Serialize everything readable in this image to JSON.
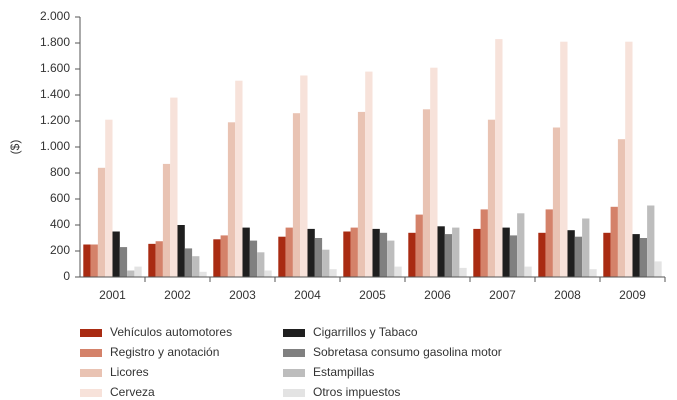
{
  "chart_data": {
    "type": "bar",
    "ylabel": "($)",
    "categories": [
      "2001",
      "2002",
      "2003",
      "2004",
      "2005",
      "2006",
      "2007",
      "2008",
      "2009"
    ],
    "series": [
      {
        "name": "Vehículos automotores",
        "color": "#a92b12",
        "values": [
          250,
          255,
          290,
          310,
          350,
          340,
          370,
          340,
          340
        ]
      },
      {
        "name": "Registro y anotación",
        "color": "#d4826a",
        "values": [
          250,
          275,
          320,
          380,
          380,
          480,
          520,
          520,
          540
        ]
      },
      {
        "name": "Licores",
        "color": "#e9c3b3",
        "values": [
          840,
          870,
          1190,
          1260,
          1270,
          1290,
          1210,
          1150,
          1060
        ]
      },
      {
        "name": "Cerveza",
        "color": "#f7e2da",
        "values": [
          1210,
          1380,
          1510,
          1550,
          1580,
          1610,
          1830,
          1810,
          1810
        ]
      },
      {
        "name": "Cigarrillos y Tabaco",
        "color": "#1f1f1f",
        "values": [
          350,
          400,
          380,
          370,
          370,
          390,
          380,
          360,
          330
        ]
      },
      {
        "name": "Sobretasa consumo gasolina motor",
        "color": "#808080",
        "values": [
          230,
          220,
          280,
          300,
          340,
          330,
          320,
          310,
          300
        ]
      },
      {
        "name": "Estampillas",
        "color": "#bdbdbd",
        "values": [
          50,
          160,
          190,
          210,
          280,
          380,
          490,
          450,
          550
        ]
      },
      {
        "name": "Otros impuestos",
        "color": "#e3e3e3",
        "values": [
          80,
          40,
          50,
          60,
          80,
          70,
          80,
          60,
          120
        ]
      }
    ],
    "ylim": [
      0,
      2000
    ],
    "yticks": [
      0,
      200,
      400,
      600,
      800,
      {
        "value": 1000,
        "label": "1.000"
      },
      {
        "value": 1200,
        "label": "1.200"
      },
      {
        "value": 1400,
        "label": "1.400"
      },
      {
        "value": 1600,
        "label": "1.600"
      },
      {
        "value": 1800,
        "label": "1.800"
      },
      {
        "value": 2000,
        "label": "2.000"
      }
    ]
  }
}
